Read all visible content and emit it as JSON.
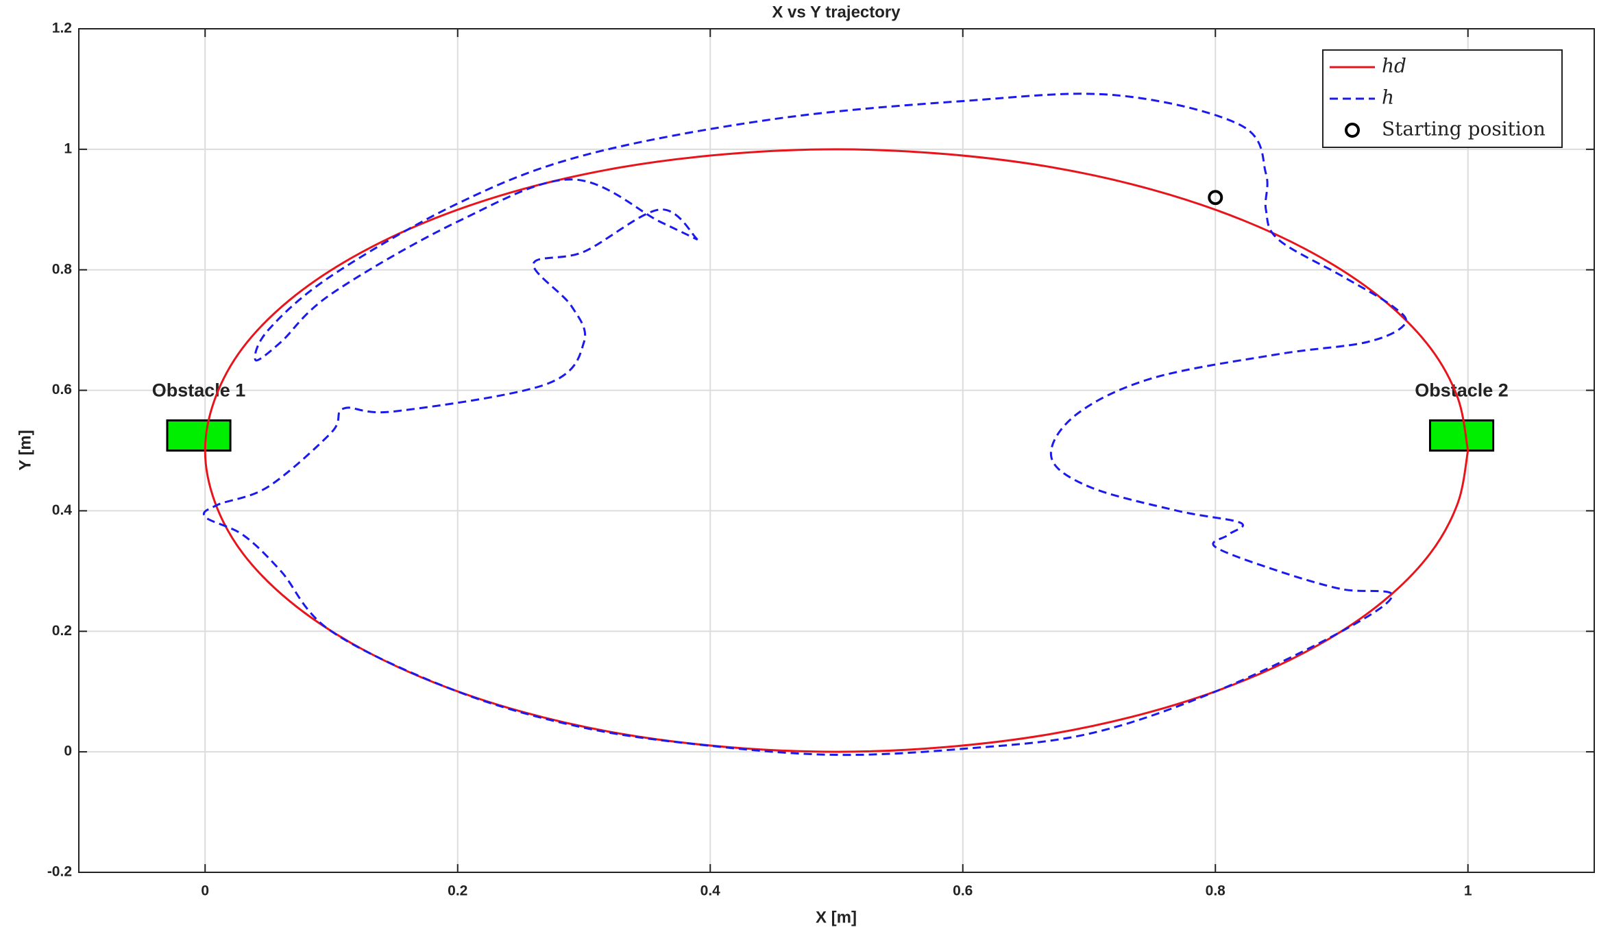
{
  "chart_data": {
    "type": "line",
    "title": "X vs Y trajectory",
    "x_label": "X [m]",
    "y_label": "Y [m]",
    "xlim": [
      -0.1,
      1.1
    ],
    "ylim": [
      -0.2,
      1.2
    ],
    "xticks": [
      0,
      0.2,
      0.4,
      0.6,
      0.8,
      1
    ],
    "yticks": [
      -0.2,
      0,
      0.2,
      0.4,
      0.6,
      0.8,
      1,
      1.2
    ],
    "grid": true,
    "legend": "upper right",
    "series": [
      {
        "name": "hd",
        "color": "#e8141c",
        "style": "solid",
        "x": [
          1,
          0.992,
          0.97,
          0.933,
          0.883,
          0.821,
          0.75,
          0.671,
          0.587,
          0.5,
          0.413,
          0.329,
          0.25,
          0.179,
          0.117,
          0.067,
          0.03,
          0.008,
          0,
          0.008,
          0.03,
          0.067,
          0.117,
          0.179,
          0.25,
          0.329,
          0.413,
          0.5,
          0.587,
          0.671,
          0.75,
          0.821,
          0.883,
          0.933,
          0.97,
          0.992,
          1
        ],
        "y": [
          0.5,
          0.587,
          0.671,
          0.75,
          0.821,
          0.883,
          0.933,
          0.97,
          0.992,
          1,
          0.992,
          0.97,
          0.933,
          0.883,
          0.821,
          0.75,
          0.671,
          0.587,
          0.5,
          0.413,
          0.329,
          0.25,
          0.179,
          0.117,
          0.067,
          0.03,
          0.008,
          0,
          0.008,
          0.03,
          0.067,
          0.117,
          0.179,
          0.25,
          0.329,
          0.413,
          0.5
        ]
      },
      {
        "name": "h",
        "color": "#1a1aee",
        "style": "dashed",
        "x": [
          0.39,
          0.36,
          0.3,
          0.26,
          0.29,
          0.3,
          0.27,
          0.15,
          0.11,
          0.1,
          0.05,
          0.01,
          0.0,
          0.03,
          0.06,
          0.1,
          0.2,
          0.3,
          0.4,
          0.5,
          0.6,
          0.7,
          0.8,
          0.9,
          0.94,
          0.9,
          0.85,
          0.8,
          0.81,
          0.82,
          0.77,
          0.7,
          0.67,
          0.69,
          0.75,
          0.85,
          0.92,
          0.95,
          0.94,
          0.9,
          0.85,
          0.84,
          0.84,
          0.82,
          0.72,
          0.6,
          0.45,
          0.3,
          0.2,
          0.1,
          0.05,
          0.04,
          0.06,
          0.1,
          0.2,
          0.29,
          0.36,
          0.39
        ],
        "y": [
          0.85,
          0.9,
          0.83,
          0.81,
          0.74,
          0.68,
          0.61,
          0.565,
          0.57,
          0.53,
          0.44,
          0.41,
          0.39,
          0.36,
          0.3,
          0.2,
          0.1,
          0.04,
          0.01,
          -0.005,
          0.005,
          0.03,
          0.1,
          0.2,
          0.26,
          0.27,
          0.3,
          0.34,
          0.36,
          0.38,
          0.4,
          0.44,
          0.49,
          0.56,
          0.62,
          0.66,
          0.68,
          0.71,
          0.74,
          0.79,
          0.85,
          0.9,
          0.96,
          1.04,
          1.09,
          1.08,
          1.05,
          0.99,
          0.91,
          0.79,
          0.7,
          0.65,
          0.68,
          0.76,
          0.88,
          0.95,
          0.88,
          0.85
        ]
      },
      {
        "name": "Starting position",
        "color": "#000000",
        "style": "marker",
        "x": [
          0.8
        ],
        "y": [
          0.92
        ]
      }
    ],
    "obstacles": [
      {
        "label": "Obstacle 1",
        "x": [
          -0.03,
          0.02
        ],
        "y": [
          0.5,
          0.55
        ],
        "color": "#00ee00"
      },
      {
        "label": "Obstacle 2",
        "x": [
          0.97,
          1.02
        ],
        "y": [
          0.5,
          0.55
        ],
        "color": "#00ee00"
      }
    ]
  }
}
